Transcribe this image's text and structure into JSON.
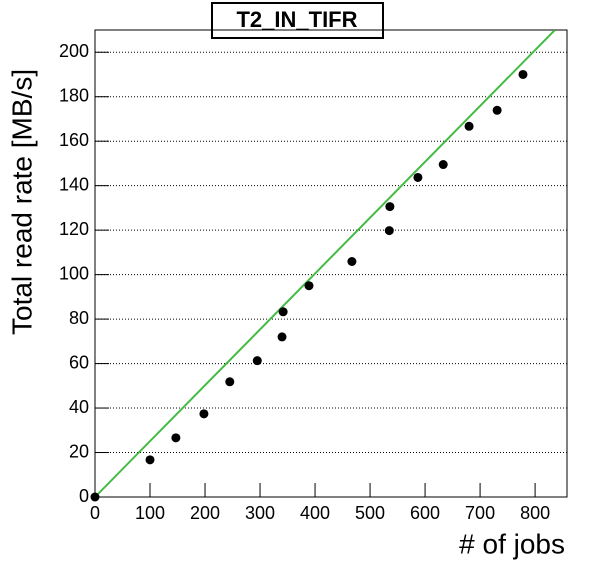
{
  "chart_data": {
    "type": "scatter",
    "title": "T2_IN_TIFR",
    "x_label": "# of jobs",
    "y_label": "Total read rate [MB/s]",
    "grid": true,
    "xlim": [
      0,
      858
    ],
    "ylim": [
      0,
      210
    ],
    "xticks": [
      0,
      100,
      200,
      300,
      400,
      500,
      600,
      700,
      800
    ],
    "yticks": [
      0,
      20,
      40,
      60,
      80,
      100,
      120,
      140,
      160,
      180,
      200
    ],
    "series": [
      {
        "type": "scatter",
        "color": "#000000",
        "x": [
          0,
          100,
          147,
          198,
          245,
          295,
          340,
          342,
          389,
          467,
          535,
          536,
          587,
          633,
          680,
          731,
          778
        ],
        "values": [
          0,
          16.7,
          26.6,
          37.4,
          51.8,
          61.3,
          72,
          83.3,
          95,
          105.9,
          119.8,
          130.6,
          143.7,
          149.5,
          166.7,
          173.9,
          190
        ]
      },
      {
        "type": "line",
        "color": "#44bb44",
        "x": [
          0,
          836
        ],
        "values": [
          0,
          210
        ]
      }
    ]
  }
}
